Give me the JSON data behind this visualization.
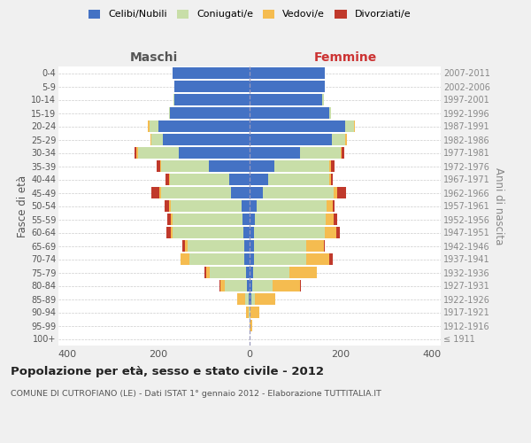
{
  "age_groups": [
    "100+",
    "95-99",
    "90-94",
    "85-89",
    "80-84",
    "75-79",
    "70-74",
    "65-69",
    "60-64",
    "55-59",
    "50-54",
    "45-49",
    "40-44",
    "35-39",
    "30-34",
    "25-29",
    "20-24",
    "15-19",
    "10-14",
    "5-9",
    "0-4"
  ],
  "birth_years": [
    "≤ 1911",
    "1912-1916",
    "1917-1921",
    "1922-1926",
    "1927-1931",
    "1932-1936",
    "1937-1941",
    "1942-1946",
    "1947-1951",
    "1952-1956",
    "1957-1961",
    "1962-1966",
    "1967-1971",
    "1972-1976",
    "1977-1981",
    "1982-1986",
    "1987-1991",
    "1992-1996",
    "1997-2001",
    "2002-2006",
    "2007-2011"
  ],
  "male_celibi": [
    0,
    0,
    0,
    2,
    5,
    8,
    12,
    12,
    14,
    15,
    18,
    40,
    45,
    90,
    155,
    190,
    200,
    175,
    165,
    165,
    170
  ],
  "male_coniugati": [
    0,
    0,
    2,
    8,
    50,
    80,
    120,
    125,
    155,
    155,
    155,
    155,
    130,
    105,
    90,
    25,
    20,
    2,
    2,
    0,
    0
  ],
  "male_vedovi": [
    0,
    0,
    5,
    18,
    10,
    8,
    20,
    5,
    5,
    3,
    3,
    3,
    2,
    2,
    3,
    3,
    3,
    0,
    0,
    0,
    0
  ],
  "male_divorziati": [
    0,
    0,
    0,
    0,
    2,
    3,
    0,
    5,
    8,
    8,
    10,
    18,
    8,
    8,
    5,
    0,
    0,
    0,
    0,
    0,
    0
  ],
  "female_celibi": [
    0,
    0,
    0,
    3,
    5,
    8,
    10,
    10,
    10,
    12,
    15,
    30,
    40,
    55,
    110,
    180,
    210,
    175,
    160,
    165,
    165
  ],
  "female_coniugati": [
    0,
    0,
    2,
    8,
    45,
    80,
    115,
    115,
    155,
    155,
    155,
    155,
    135,
    120,
    90,
    30,
    20,
    3,
    3,
    0,
    0
  ],
  "female_vedovi": [
    0,
    5,
    20,
    45,
    60,
    60,
    50,
    38,
    25,
    18,
    12,
    8,
    3,
    3,
    3,
    3,
    2,
    0,
    0,
    0,
    0
  ],
  "female_divorziati": [
    0,
    0,
    0,
    0,
    2,
    0,
    8,
    3,
    8,
    8,
    5,
    18,
    5,
    8,
    5,
    0,
    0,
    0,
    0,
    0,
    0
  ],
  "color_celibi": "#4472c4",
  "color_coniugati": "#c8dea8",
  "color_vedovi": "#f5bc50",
  "color_divorziati": "#c0392b",
  "title": "Popolazione per età, sesso e stato civile - 2012",
  "subtitle": "COMUNE DI CUTROFIANO (LE) - Dati ISTAT 1° gennaio 2012 - Elaborazione TUTTITALIA.IT",
  "ylabel_left": "Fasce di età",
  "ylabel_right": "Anni di nascita",
  "xlabel_left": "Maschi",
  "xlabel_right": "Femmine",
  "xlim": 420,
  "background_color": "#f0f0f0",
  "plot_bg_color": "#ffffff"
}
